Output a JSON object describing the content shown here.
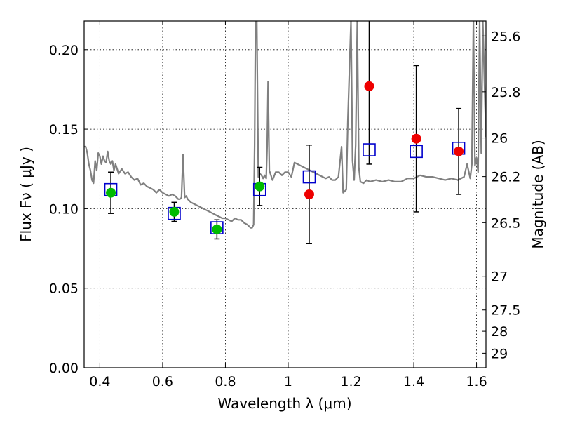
{
  "chart_data": {
    "type": "scatter",
    "title": "",
    "xlabel": "Wavelength  λ (μm)",
    "ylabel": "Flux  Fν  ( μJy )",
    "ylabel_right": "Magnitude (AB)",
    "xlim": [
      0.35,
      1.63
    ],
    "ylim": [
      0.0,
      0.218
    ],
    "grid": true,
    "x_ticks": [
      0.4,
      0.6,
      0.8,
      1.0,
      1.2,
      1.4,
      1.6
    ],
    "x_tick_labels": [
      "0.4",
      "0.6",
      "0.8",
      "1",
      "1.2",
      "1.4",
      "1.6"
    ],
    "y_ticks": [
      0.0,
      0.05,
      0.1,
      0.15,
      0.2
    ],
    "y_tick_labels": [
      "0.00",
      "0.05",
      "0.10",
      "0.15",
      "0.20"
    ],
    "right_ticks": [
      {
        "label": "25.6",
        "flux": 0.2086
      },
      {
        "label": "25.8",
        "flux": 0.1735
      },
      {
        "label": "26",
        "flux": 0.1445
      },
      {
        "label": "26.2",
        "flux": 0.1202
      },
      {
        "label": "26.5",
        "flux": 0.0912
      },
      {
        "label": "27",
        "flux": 0.0575
      },
      {
        "label": "27.5",
        "flux": 0.0363
      },
      {
        "label": "28",
        "flux": 0.0229
      },
      {
        "label": "29",
        "flux": 0.0091
      }
    ],
    "series": [
      {
        "kind": "line",
        "color": "#808080",
        "x": [
          0.35,
          0.355,
          0.36,
          0.365,
          0.37,
          0.375,
          0.38,
          0.385,
          0.39,
          0.395,
          0.4,
          0.405,
          0.41,
          0.415,
          0.42,
          0.425,
          0.43,
          0.435,
          0.44,
          0.445,
          0.45,
          0.46,
          0.47,
          0.48,
          0.49,
          0.5,
          0.51,
          0.52,
          0.53,
          0.54,
          0.55,
          0.56,
          0.57,
          0.58,
          0.59,
          0.6,
          0.61,
          0.62,
          0.63,
          0.64,
          0.65,
          0.655,
          0.66,
          0.665,
          0.67,
          0.675,
          0.68,
          0.69,
          0.7,
          0.71,
          0.72,
          0.73,
          0.74,
          0.75,
          0.76,
          0.77,
          0.78,
          0.79,
          0.8,
          0.81,
          0.82,
          0.83,
          0.84,
          0.85,
          0.86,
          0.87,
          0.88,
          0.885,
          0.89,
          0.893,
          0.896,
          0.9,
          0.905,
          0.91,
          0.915,
          0.92,
          0.925,
          0.93,
          0.933,
          0.936,
          0.94,
          0.95,
          0.96,
          0.97,
          0.98,
          0.99,
          1.0,
          1.01,
          1.02,
          1.03,
          1.04,
          1.05,
          1.06,
          1.07,
          1.08,
          1.09,
          1.1,
          1.11,
          1.12,
          1.13,
          1.14,
          1.15,
          1.16,
          1.17,
          1.175,
          1.18,
          1.185,
          1.19,
          1.2,
          1.205,
          1.21,
          1.215,
          1.22,
          1.225,
          1.23,
          1.24,
          1.25,
          1.26,
          1.28,
          1.3,
          1.32,
          1.34,
          1.36,
          1.38,
          1.4,
          1.42,
          1.44,
          1.46,
          1.48,
          1.5,
          1.52,
          1.54,
          1.56,
          1.57,
          1.58,
          1.585,
          1.59,
          1.595,
          1.6,
          1.605,
          1.61,
          1.615,
          1.62,
          1.63
        ],
        "y": [
          0.139,
          0.139,
          0.135,
          0.128,
          0.124,
          0.118,
          0.116,
          0.13,
          0.124,
          0.135,
          0.133,
          0.128,
          0.133,
          0.13,
          0.129,
          0.136,
          0.13,
          0.128,
          0.13,
          0.124,
          0.128,
          0.122,
          0.125,
          0.122,
          0.123,
          0.12,
          0.118,
          0.119,
          0.115,
          0.116,
          0.114,
          0.113,
          0.112,
          0.11,
          0.112,
          0.11,
          0.109,
          0.108,
          0.109,
          0.108,
          0.106,
          0.106,
          0.107,
          0.134,
          0.107,
          0.108,
          0.106,
          0.104,
          0.103,
          0.102,
          0.101,
          0.1,
          0.099,
          0.098,
          0.097,
          0.096,
          0.095,
          0.094,
          0.094,
          0.093,
          0.092,
          0.094,
          0.093,
          0.093,
          0.091,
          0.09,
          0.088,
          0.088,
          0.09,
          0.14,
          0.218,
          0.218,
          0.12,
          0.122,
          0.121,
          0.119,
          0.121,
          0.119,
          0.14,
          0.18,
          0.124,
          0.118,
          0.123,
          0.123,
          0.121,
          0.123,
          0.123,
          0.12,
          0.129,
          0.128,
          0.127,
          0.126,
          0.125,
          0.124,
          0.123,
          0.122,
          0.121,
          0.12,
          0.119,
          0.12,
          0.118,
          0.118,
          0.12,
          0.139,
          0.11,
          0.111,
          0.112,
          0.155,
          0.218,
          0.13,
          0.118,
          0.14,
          0.218,
          0.126,
          0.117,
          0.116,
          0.118,
          0.117,
          0.118,
          0.117,
          0.118,
          0.117,
          0.117,
          0.119,
          0.119,
          0.121,
          0.12,
          0.12,
          0.119,
          0.118,
          0.119,
          0.118,
          0.12,
          0.128,
          0.119,
          0.128,
          0.218,
          0.127,
          0.132,
          0.123,
          0.218,
          0.135,
          0.218,
          0.145
        ]
      },
      {
        "kind": "errorbars",
        "color": "#000000",
        "x": [
          0.435,
          0.637,
          0.773,
          0.909,
          1.067,
          1.258,
          1.408,
          1.543
        ],
        "y": [
          0.11,
          0.098,
          0.087,
          0.114,
          0.109,
          0.177,
          0.144,
          0.136
        ],
        "yerr_low": [
          0.013,
          0.006,
          0.006,
          0.012,
          0.031,
          0.049,
          0.046,
          0.027
        ],
        "yerr_high": [
          0.013,
          0.006,
          0.006,
          0.012,
          0.031,
          0.049,
          0.046,
          0.027
        ]
      },
      {
        "kind": "squares",
        "color": "#0000cc",
        "x": [
          0.435,
          0.637,
          0.773,
          0.909,
          1.067,
          1.258,
          1.408,
          1.543
        ],
        "y": [
          0.112,
          0.097,
          0.088,
          0.112,
          0.12,
          0.137,
          0.136,
          0.138
        ]
      },
      {
        "kind": "points",
        "color": "#00bb00",
        "x": [
          0.435,
          0.637,
          0.773,
          0.909
        ],
        "y": [
          0.11,
          0.098,
          0.087,
          0.114
        ]
      },
      {
        "kind": "points",
        "color": "#ee0000",
        "x": [
          1.067,
          1.258,
          1.408,
          1.543
        ],
        "y": [
          0.109,
          0.177,
          0.144,
          0.136
        ]
      }
    ]
  }
}
